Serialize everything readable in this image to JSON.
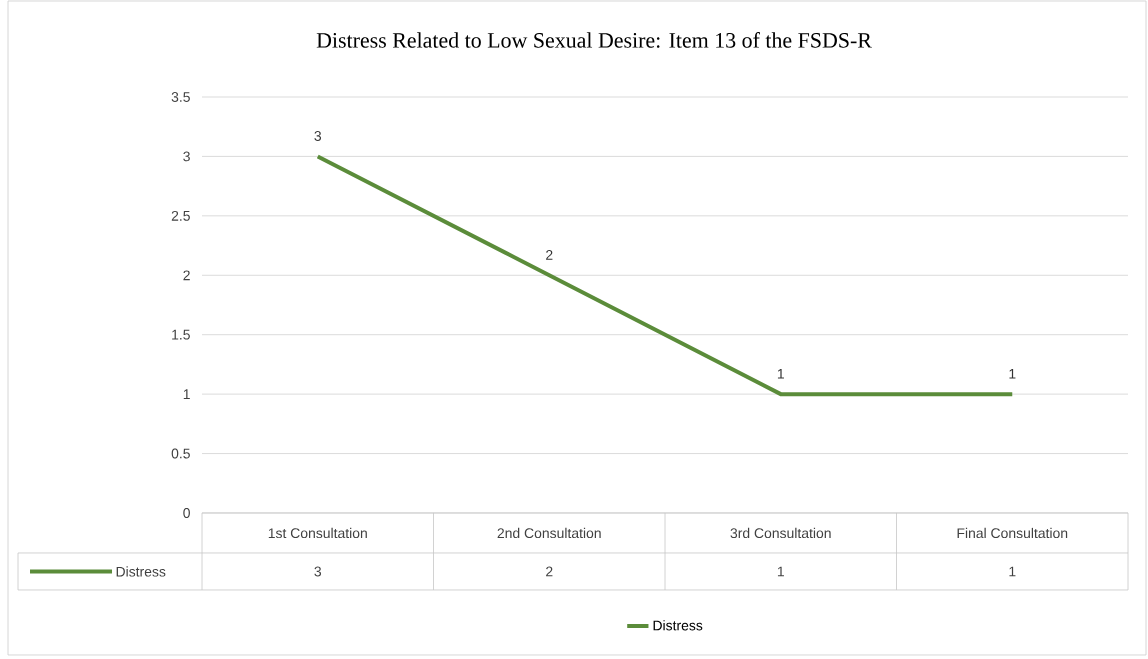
{
  "chart_data": {
    "type": "line",
    "title": "Distress Related to Low Sexual Desire: Item 13 of the FSDS-R",
    "categories": [
      "1st Consultation",
      "2nd Consultation",
      "3rd Consultation",
      "Final Consultation"
    ],
    "series": [
      {
        "name": "Distress",
        "color": "#5b8c3a",
        "values": [
          3,
          2,
          1,
          1
        ],
        "value_labels": [
          "3",
          "2",
          "1",
          "1"
        ]
      }
    ],
    "ylim": [
      0,
      3.5
    ],
    "yticks": [
      0,
      0.5,
      1,
      1.5,
      2,
      2.5,
      3,
      3.5
    ],
    "grid": "y",
    "legend": "bottom",
    "marker": "none",
    "line_style": "solid"
  }
}
